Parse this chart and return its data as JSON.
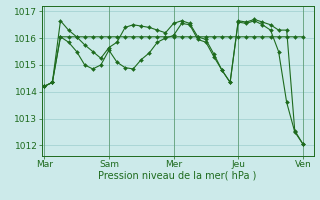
{
  "background_color": "#cceaea",
  "plot_bg_color": "#cceaea",
  "line_color": "#1e6b1e",
  "marker_color": "#1e6b1e",
  "grid_color": "#9ecece",
  "xlabel": "Pression niveau de la mer( hPa )",
  "xlabel_color": "#1e6b1e",
  "xtick_labels": [
    "Mar",
    "Sam",
    "Mer",
    "Jeu",
    "Ven"
  ],
  "xtick_positions": [
    0,
    48,
    96,
    144,
    192
  ],
  "ytick_labels": [
    "1012",
    "1013",
    "1014",
    "1015",
    "1016",
    "1017"
  ],
  "ylim": [
    1011.6,
    1017.2
  ],
  "xlim": [
    -2,
    200
  ],
  "line1_x": [
    0,
    6,
    12,
    18,
    24,
    30,
    36,
    42,
    48,
    54,
    60,
    66,
    72,
    78,
    84,
    90,
    96,
    102,
    108,
    114,
    120,
    126,
    132,
    138,
    144,
    150,
    156,
    162,
    168,
    174,
    180,
    186,
    192
  ],
  "line1_y": [
    1014.2,
    1014.35,
    1016.05,
    1016.05,
    1016.05,
    1016.05,
    1016.05,
    1016.05,
    1016.05,
    1016.05,
    1016.05,
    1016.05,
    1016.05,
    1016.05,
    1016.05,
    1016.05,
    1016.05,
    1016.05,
    1016.05,
    1016.05,
    1016.05,
    1016.05,
    1016.05,
    1016.05,
    1016.05,
    1016.05,
    1016.05,
    1016.05,
    1016.05,
    1016.05,
    1016.05,
    1016.05,
    1016.05
  ],
  "line2_x": [
    0,
    6,
    12,
    18,
    24,
    30,
    36,
    42,
    48,
    54,
    60,
    66,
    72,
    78,
    84,
    90,
    96,
    102,
    108,
    114,
    120,
    126,
    132,
    138,
    144,
    150,
    156,
    162,
    168,
    174,
    180,
    186,
    192
  ],
  "line2_y": [
    1014.2,
    1014.35,
    1016.65,
    1016.3,
    1016.05,
    1015.75,
    1015.5,
    1015.25,
    1015.65,
    1015.85,
    1016.4,
    1016.5,
    1016.45,
    1016.4,
    1016.3,
    1016.2,
    1016.55,
    1016.65,
    1016.55,
    1016.05,
    1015.95,
    1015.4,
    1014.8,
    1014.35,
    1016.65,
    1016.6,
    1016.7,
    1016.6,
    1016.5,
    1016.3,
    1016.3,
    1012.55,
    1012.05
  ],
  "line3_x": [
    0,
    6,
    12,
    18,
    24,
    30,
    36,
    42,
    48,
    54,
    60,
    66,
    72,
    78,
    84,
    90,
    96,
    102,
    108,
    114,
    120,
    126,
    132,
    138,
    144,
    150,
    156,
    162,
    168,
    174,
    180,
    186,
    192
  ],
  "line3_y": [
    1014.2,
    1014.35,
    1016.05,
    1015.85,
    1015.5,
    1015.0,
    1014.85,
    1015.0,
    1015.55,
    1015.1,
    1014.9,
    1014.85,
    1015.2,
    1015.45,
    1015.85,
    1016.0,
    1016.1,
    1016.55,
    1016.5,
    1015.95,
    1015.85,
    1015.3,
    1014.8,
    1014.35,
    1016.6,
    1016.55,
    1016.65,
    1016.5,
    1016.3,
    1015.5,
    1013.6,
    1012.5,
    1012.05
  ]
}
